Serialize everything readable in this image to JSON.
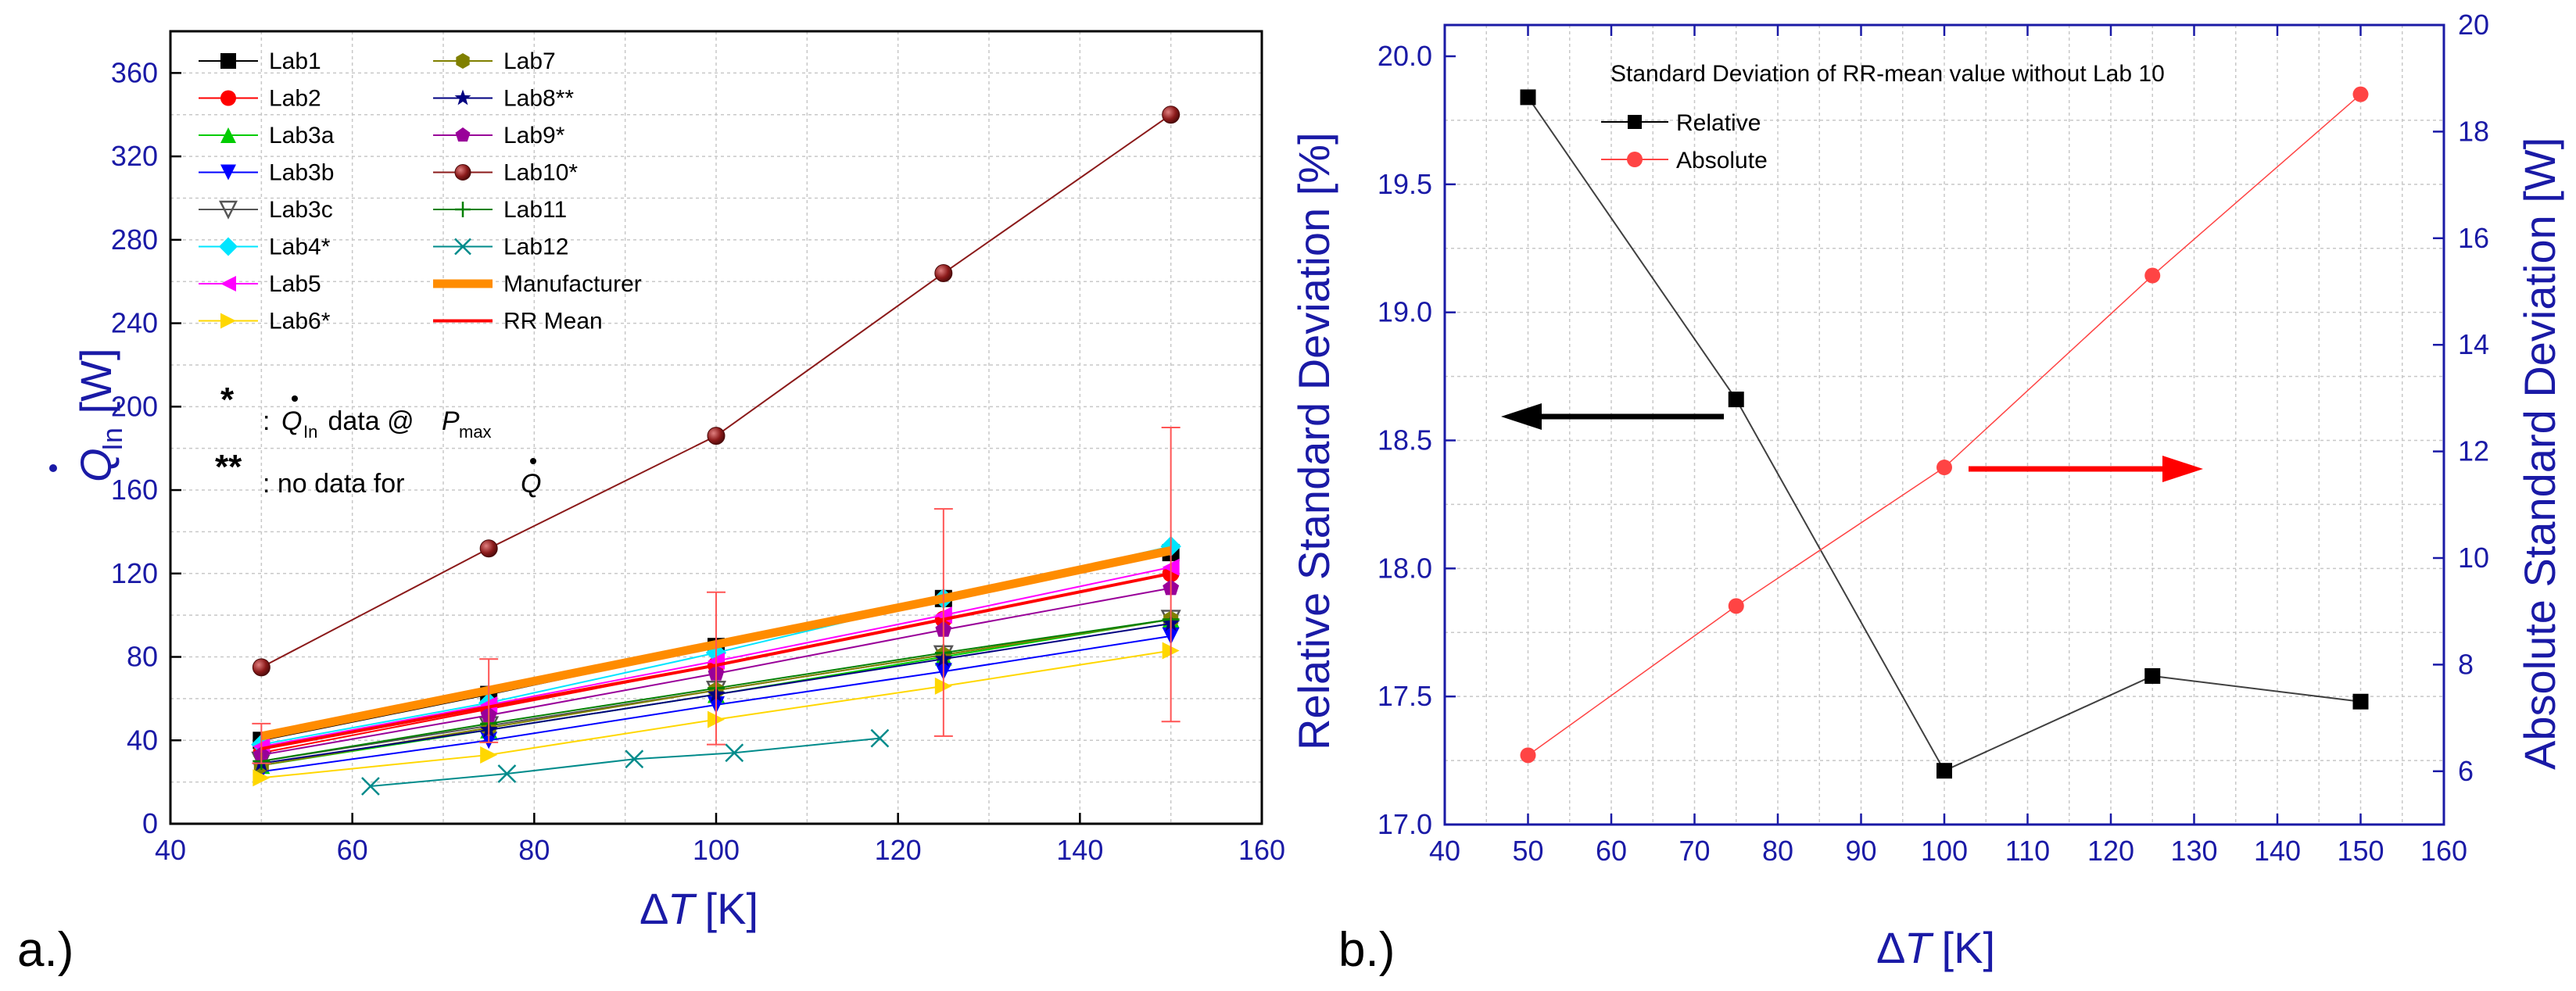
{
  "chart_data": [
    {
      "panel": "a.)",
      "type": "line",
      "title": "",
      "xlabel": {
        "delta": "Δ",
        "var": "T",
        "unit": " [K]"
      },
      "ylabel": {
        "var": "Q",
        "sub": "In",
        "unit": " [W]"
      },
      "xlim": [
        40,
        160
      ],
      "ylim": [
        0,
        380
      ],
      "xticks": [
        40,
        60,
        80,
        100,
        120,
        140,
        160
      ],
      "yticks": [
        0,
        40,
        80,
        120,
        160,
        200,
        240,
        280,
        320,
        360
      ],
      "grid": true,
      "series": [
        {
          "name": "Lab1",
          "color": "#000000",
          "marker": "square",
          "x": [
            50,
            75,
            100,
            125,
            150
          ],
          "y": [
            40,
            62,
            85,
            108,
            130
          ]
        },
        {
          "name": "Lab2",
          "color": "#ff0000",
          "marker": "circle",
          "x": [
            50,
            75,
            100,
            125,
            150
          ],
          "y": [
            34,
            55,
            76,
            98,
            120
          ]
        },
        {
          "name": "Lab3a",
          "color": "#00cc00",
          "marker": "triangle-up",
          "x": [
            50,
            75,
            100,
            125,
            150
          ],
          "y": [
            28,
            45,
            62,
            80,
            98
          ]
        },
        {
          "name": "Lab3b",
          "color": "#0000ff",
          "marker": "triangle-down",
          "x": [
            50,
            75,
            100,
            125,
            150
          ],
          "y": [
            25,
            40,
            57,
            73,
            90
          ]
        },
        {
          "name": "Lab3c",
          "color": "#555555",
          "marker": "triangle-down-open",
          "x": [
            50,
            75,
            100,
            125,
            150
          ],
          "y": [
            30,
            47,
            64,
            81,
            98
          ]
        },
        {
          "name": "Lab4*",
          "color": "#00e5ff",
          "marker": "diamond",
          "x": [
            50,
            75,
            100,
            125,
            150
          ],
          "y": [
            38,
            58,
            82,
            108,
            133
          ]
        },
        {
          "name": "Lab5",
          "color": "#ff00ff",
          "marker": "triangle-left",
          "x": [
            50,
            75,
            100,
            125,
            150
          ],
          "y": [
            37,
            57,
            78,
            100,
            123
          ]
        },
        {
          "name": "Lab6*",
          "color": "#ffd700",
          "marker": "triangle-right",
          "x": [
            50,
            75,
            100,
            125,
            150
          ],
          "y": [
            22,
            33,
            50,
            66,
            83
          ]
        },
        {
          "name": "Lab7",
          "color": "#808000",
          "marker": "hexagon",
          "x": [
            50,
            75,
            100,
            125,
            150
          ],
          "y": [
            28,
            46,
            64,
            81,
            98
          ]
        },
        {
          "name": "Lab8**",
          "color": "#000080",
          "marker": "star",
          "x": [
            50,
            75,
            100,
            125,
            150
          ],
          "y": [
            29,
            45,
            62,
            79,
            96
          ]
        },
        {
          "name": "Lab9*",
          "color": "#990099",
          "marker": "pentagon",
          "x": [
            50,
            75,
            100,
            125,
            150
          ],
          "y": [
            33,
            52,
            72,
            93,
            113
          ]
        },
        {
          "name": "Lab10*",
          "color": "#8b1a1a",
          "marker": "sphere",
          "x": [
            50,
            75,
            100,
            125,
            150
          ],
          "y": [
            75,
            132,
            186,
            264,
            340
          ]
        },
        {
          "name": "Lab11",
          "color": "#008000",
          "marker": "plus",
          "x": [
            50,
            75,
            100,
            125,
            150
          ],
          "y": [
            30,
            48,
            65,
            82,
            98
          ]
        },
        {
          "name": "Lab12",
          "color": "#008b8b",
          "marker": "x",
          "x": [
            62,
            77,
            91,
            102,
            118
          ],
          "y": [
            18,
            24,
            31,
            34,
            41
          ]
        },
        {
          "name": "Manufacturer",
          "color": "#ff8c00",
          "marker": "thick-line",
          "x": [
            50,
            75,
            100,
            125,
            150
          ],
          "y": [
            42,
            64,
            86,
            108,
            131
          ]
        },
        {
          "name": "RR Mean",
          "color": "#ff0000",
          "marker": "line",
          "x": [
            50,
            75,
            100,
            125,
            150
          ],
          "y": [
            36,
            56,
            76,
            98,
            120
          ],
          "error_low": [
            29,
            39,
            38,
            42,
            49
          ],
          "error_high": [
            48,
            79,
            111,
            151,
            190
          ]
        }
      ],
      "annotations": {
        "star_symbol": "*",
        "star_q": "Q",
        "star_q_sub": "In",
        "star_text": " data @ ",
        "star_p": "P",
        "star_p_sub": "max",
        "dstar_symbol": "**",
        "dstar_text": ": no data for ",
        "dstar_q": "Q",
        "colon": ":"
      }
    },
    {
      "panel": "b.)",
      "type": "line",
      "title": "Standard Deviation of RR-mean value without Lab 10",
      "xlabel": {
        "delta": "Δ",
        "var": "T",
        "unit": " [K]"
      },
      "ylabel_left": "Relative Standard Deviation [%]",
      "ylabel_right": "Absolute Standard Deviation [W]",
      "xlim": [
        40,
        160
      ],
      "ylim_left": [
        17.0,
        20.0
      ],
      "ylim_right": [
        5,
        20
      ],
      "xticks": [
        40,
        50,
        60,
        70,
        80,
        90,
        100,
        110,
        120,
        130,
        140,
        150,
        160
      ],
      "yticks_left": [
        "17.0",
        "17.5",
        "18.0",
        "18.5",
        "19.0",
        "19.5",
        "20.0"
      ],
      "yticks_right": [
        6,
        8,
        10,
        12,
        14,
        16,
        18,
        20
      ],
      "grid": true,
      "series": [
        {
          "name": "Relative",
          "axis": "left",
          "color": "#000000",
          "marker": "square",
          "x": [
            50,
            75,
            100,
            125,
            150
          ],
          "y": [
            19.84,
            18.66,
            17.21,
            17.58,
            17.48
          ]
        },
        {
          "name": "Absolute",
          "axis": "right",
          "color": "#ff4444",
          "marker": "circle",
          "x": [
            50,
            75,
            100,
            125,
            150
          ],
          "y": [
            6.3,
            9.1,
            11.7,
            15.3,
            18.7
          ]
        }
      ]
    }
  ]
}
